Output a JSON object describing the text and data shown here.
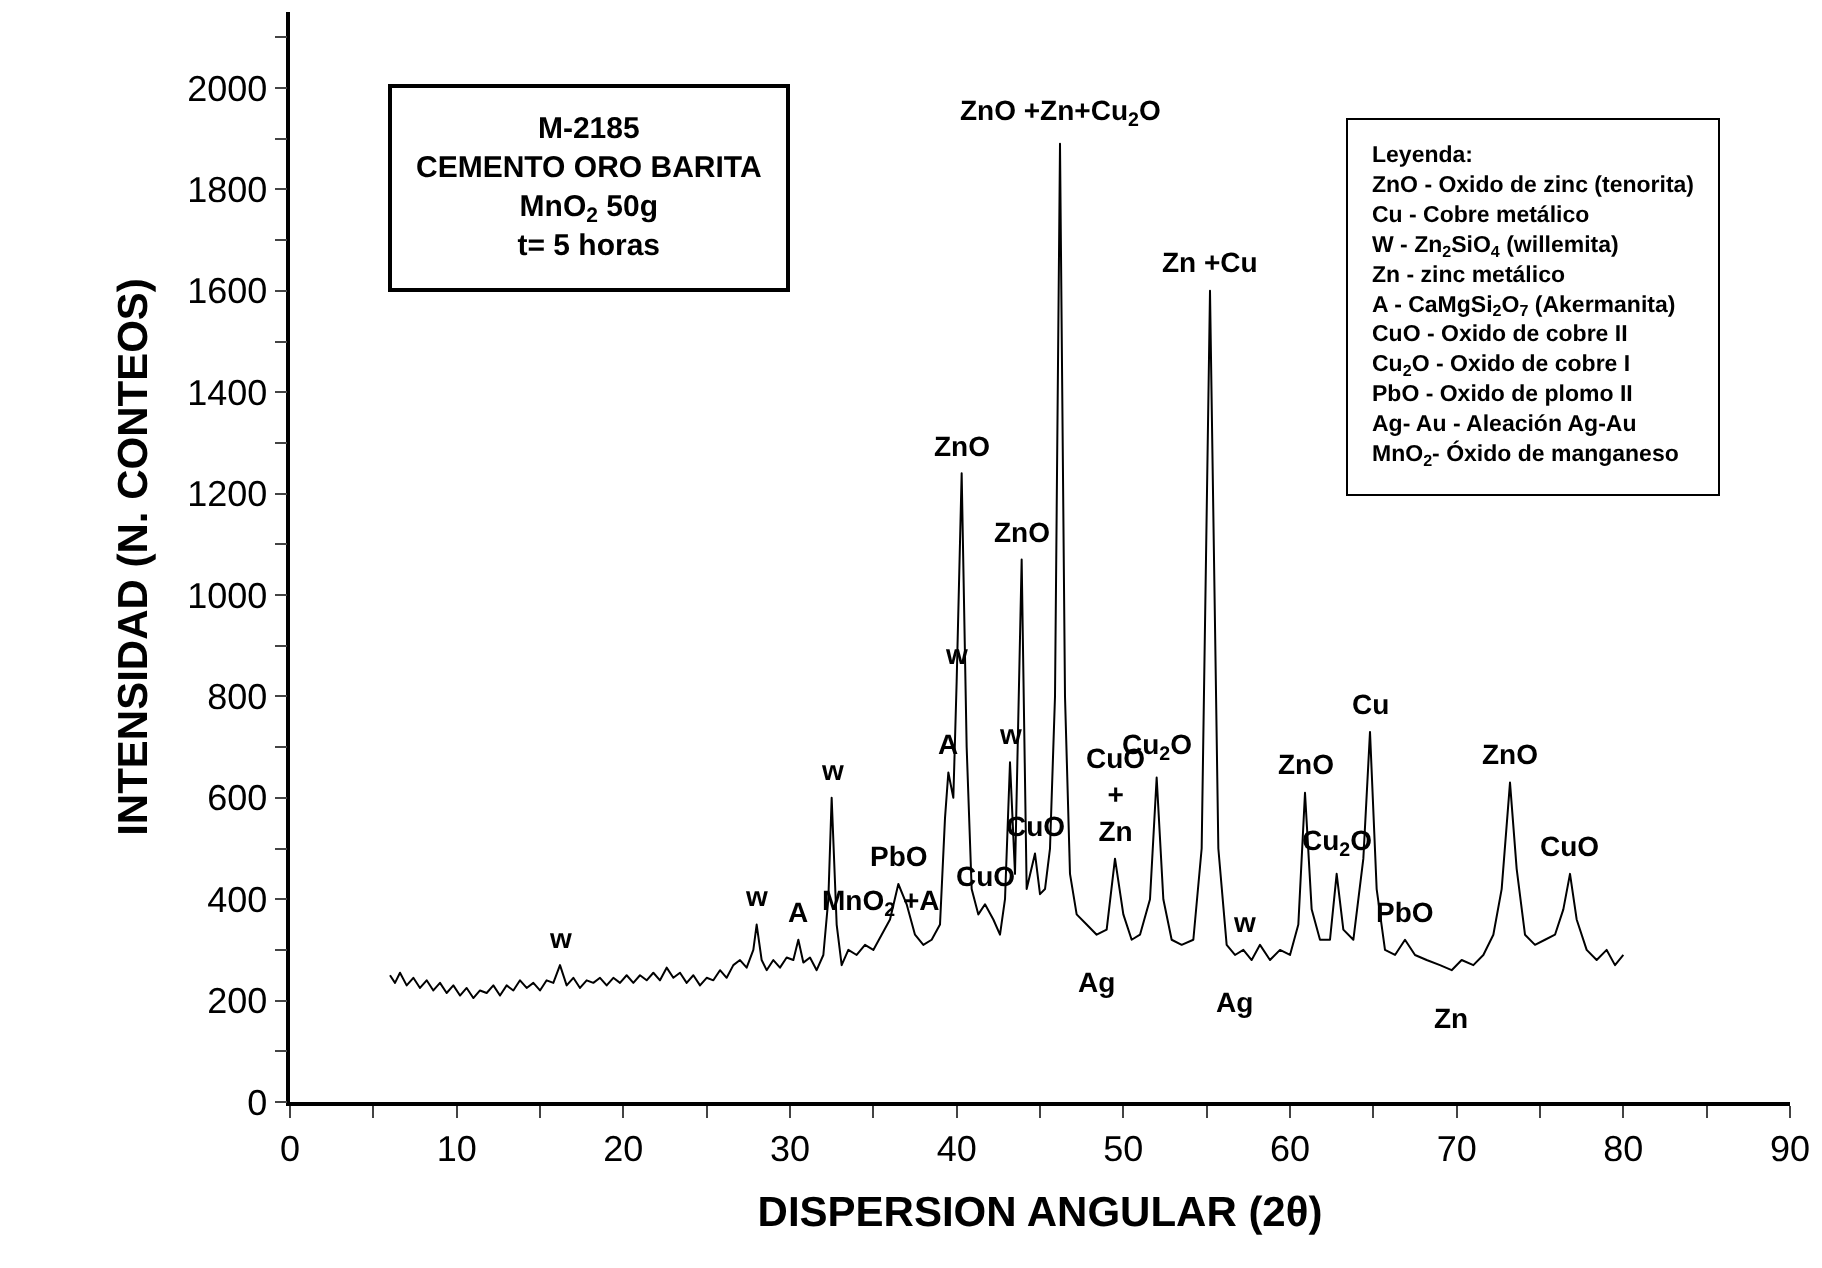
{
  "chart_data": {
    "type": "line",
    "title": "M-2185\nCEMENTO ORO BARITA\nMnO$_{2}$ 50g\nt= 5 horas",
    "xlabel": "DISPERSION ANGULAR (2θ)",
    "ylabel": "INTENSIDAD (N. CONTEOS)",
    "xlim": [
      0,
      90
    ],
    "ylim": [
      0,
      2150
    ],
    "xticks": [
      0,
      {
        "value": 5,
        "label": null
      },
      10,
      {
        "value": 15,
        "label": null
      },
      20,
      {
        "value": 25,
        "label": null
      },
      30,
      {
        "value": 35,
        "label": null
      },
      40,
      {
        "value": 45,
        "label": null
      },
      50,
      {
        "value": 55,
        "label": null
      },
      60,
      {
        "value": 65,
        "label": null
      },
      70,
      {
        "value": 75,
        "label": null
      },
      80,
      {
        "value": 85,
        "label": null
      },
      90
    ],
    "yticks": [
      0,
      {
        "value": 100,
        "label": null
      },
      200,
      {
        "value": 300,
        "label": null
      },
      400,
      {
        "value": 500,
        "label": null
      },
      600,
      {
        "value": 700,
        "label": null
      },
      800,
      {
        "value": 900,
        "label": null
      },
      1000,
      {
        "value": 1100,
        "label": null
      },
      1200,
      {
        "value": 1300,
        "label": null
      },
      1400,
      {
        "value": 1500,
        "label": null
      },
      1600,
      {
        "value": 1700,
        "label": null
      },
      1800,
      {
        "value": 1900,
        "label": null
      },
      2000,
      {
        "value": 2100,
        "label": null
      }
    ],
    "series": [
      {
        "color": "#000000",
        "x": [
          6,
          6.3,
          6.6,
          7,
          7.4,
          7.8,
          8.2,
          8.6,
          9,
          9.4,
          9.8,
          10.2,
          10.6,
          11,
          11.4,
          11.8,
          12.2,
          12.6,
          13,
          13.4,
          13.8,
          14.2,
          14.6,
          15,
          15.4,
          15.8,
          16.2,
          16.6,
          17,
          17.4,
          17.8,
          18.2,
          18.6,
          19,
          19.4,
          19.8,
          20.2,
          20.6,
          21,
          21.4,
          21.8,
          22.2,
          22.6,
          23,
          23.4,
          23.8,
          24.2,
          24.6,
          25,
          25.4,
          25.8,
          26.2,
          26.6,
          27,
          27.4,
          27.8,
          28.0,
          28.3,
          28.6,
          29,
          29.4,
          29.8,
          30.2,
          30.5,
          30.8,
          31.2,
          31.6,
          32.0,
          32.3,
          32.5,
          32.8,
          33.1,
          33.5,
          34,
          34.5,
          35,
          35.5,
          36,
          36.5,
          37,
          37.5,
          38,
          38.5,
          39,
          39.3,
          39.5,
          39.8,
          40.0,
          40.3,
          40.6,
          40.9,
          41.3,
          41.7,
          42.2,
          42.6,
          42.9,
          43.2,
          43.5,
          43.9,
          44.2,
          44.7,
          45.0,
          45.3,
          45.6,
          45.9,
          46.2,
          46.5,
          46.8,
          47.2,
          47.8,
          48.4,
          49.0,
          49.5,
          50.0,
          50.5,
          51.0,
          51.6,
          52.0,
          52.4,
          52.9,
          53.5,
          54.2,
          54.7,
          55.2,
          55.7,
          56.2,
          56.7,
          57.2,
          57.7,
          58.2,
          58.8,
          59.4,
          60.0,
          60.5,
          60.9,
          61.3,
          61.8,
          62.4,
          62.8,
          63.2,
          63.8,
          64.4,
          64.8,
          65.2,
          65.7,
          66.3,
          66.9,
          67.5,
          68.2,
          69,
          69.7,
          70.3,
          71,
          71.6,
          72.2,
          72.7,
          73.2,
          73.6,
          74.1,
          74.7,
          75.3,
          75.9,
          76.4,
          76.8,
          77.2,
          77.8,
          78.4,
          79,
          79.5,
          80
        ],
        "values": [
          250,
          235,
          255,
          230,
          245,
          225,
          240,
          220,
          235,
          215,
          230,
          210,
          225,
          205,
          220,
          215,
          230,
          210,
          230,
          220,
          240,
          225,
          235,
          220,
          240,
          235,
          270,
          230,
          245,
          225,
          240,
          235,
          245,
          230,
          245,
          235,
          250,
          235,
          250,
          240,
          255,
          240,
          265,
          245,
          255,
          235,
          250,
          230,
          245,
          240,
          260,
          245,
          270,
          280,
          265,
          300,
          350,
          280,
          260,
          280,
          265,
          285,
          280,
          320,
          275,
          285,
          260,
          290,
          400,
          600,
          350,
          270,
          300,
          290,
          310,
          300,
          330,
          360,
          430,
          390,
          330,
          310,
          320,
          350,
          560,
          650,
          600,
          830,
          1240,
          700,
          420,
          370,
          390,
          360,
          330,
          400,
          670,
          450,
          1070,
          420,
          490,
          410,
          420,
          500,
          800,
          1890,
          800,
          450,
          370,
          350,
          330,
          340,
          480,
          370,
          320,
          330,
          400,
          640,
          400,
          320,
          310,
          320,
          500,
          1600,
          500,
          310,
          290,
          300,
          280,
          310,
          280,
          300,
          290,
          350,
          610,
          380,
          320,
          320,
          450,
          340,
          320,
          480,
          730,
          420,
          300,
          290,
          320,
          290,
          280,
          270,
          260,
          280,
          270,
          290,
          330,
          420,
          630,
          460,
          330,
          310,
          320,
          330,
          380,
          450,
          360,
          300,
          280,
          300,
          270,
          290
        ]
      }
    ],
    "annotations": [
      "Leyenda:\nZnO - Oxido de zinc (tenorita)\nCu - Cobre metálico\nW - Zn$_{2}$SiO$_{4}$ (willemita)\nZn - zinc metálico\nA - CaMgSi$_{2}$O$_{7}$ (Akermanita)\nCuO - Oxido de cobre II\nCu$_{2}$O - Oxido de cobre I\nPbO - Oxido de plomo II\nAg- Au - Aleación Ag-Au\nMnO$_{2}$- Óxido de manganeso",
      {
        "text": "w",
        "x": 16.2,
        "y": 270
      },
      {
        "text": "w",
        "x": 28.0,
        "y": 350
      },
      {
        "text": "A",
        "x": 30.5,
        "y": 320
      },
      {
        "text": "w",
        "x": 32.5,
        "y": 600
      },
      {
        "text": "MnO$_{2}$ +A",
        "x": 35.5,
        "y": 330
      },
      {
        "text": "PbO",
        "x": 36.5,
        "y": 430
      },
      {
        "text": "A",
        "x": 39.5,
        "y": 650
      },
      {
        "text": "w",
        "x": 40.0,
        "y": 830
      },
      {
        "text": "ZnO",
        "x": 40.3,
        "y": 1240
      },
      {
        "text": "w",
        "x": 43.2,
        "y": 670
      },
      {
        "text": "CuO",
        "x": 44.7,
        "y": 490
      },
      {
        "text": "CuO",
        "x": 41.7,
        "y": 390
      },
      {
        "text": "ZnO",
        "x": 43.9,
        "y": 1070
      },
      {
        "text": "ZnO +Zn+Cu$_{2}$O",
        "x": 46.2,
        "y": 1890
      },
      {
        "text": "Zn +Cu",
        "x": 55.2,
        "y": 1600
      },
      {
        "text": "Cu$_{2}$O",
        "x": 52.0,
        "y": 640
      },
      {
        "text": "CuO\n+\nZn",
        "x": 49.5,
        "y": 480
      },
      {
        "text": "Ag",
        "x": 48.4,
        "y": 330
      },
      {
        "text": "w",
        "x": 57.2,
        "y": 300
      },
      {
        "text": "Ag",
        "x": 56.7,
        "y": 290
      },
      {
        "text": "ZnO",
        "x": 60.9,
        "y": 610
      },
      {
        "text": "Cu$_{2}$O",
        "x": 62.8,
        "y": 450
      },
      {
        "text": "Cu",
        "x": 64.8,
        "y": 730
      },
      {
        "text": "PbO",
        "x": 66.9,
        "y": 320
      },
      {
        "text": "Zn",
        "x": 69.7,
        "y": 260
      },
      {
        "text": "ZnO",
        "x": 73.2,
        "y": 630
      },
      {
        "text": "CuO",
        "x": 76.8,
        "y": 450
      }
    ]
  }
}
